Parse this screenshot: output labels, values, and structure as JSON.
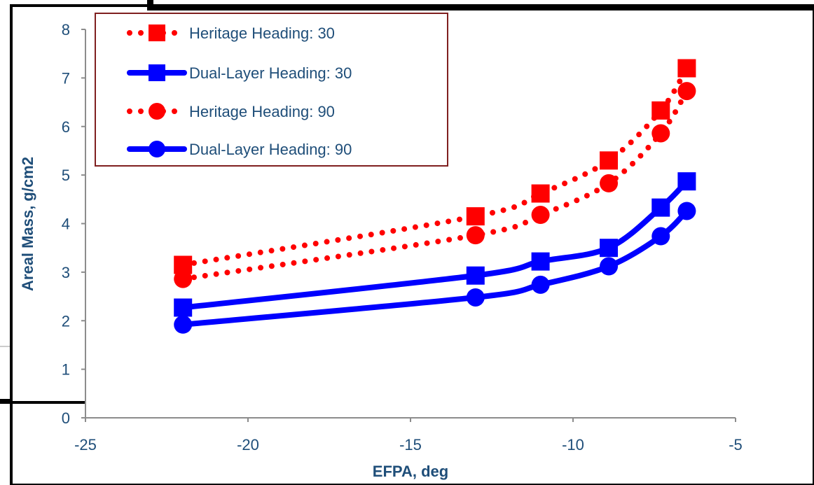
{
  "chart_data": {
    "type": "line",
    "title": "",
    "xlabel": "EFPA, deg",
    "ylabel": "Areal Mass, g/cm2",
    "xlim": [
      -25,
      -5
    ],
    "ylim": [
      0,
      8
    ],
    "x_ticks": [
      -25,
      -20,
      -15,
      -10,
      -5
    ],
    "y_ticks": [
      0,
      1,
      2,
      3,
      4,
      5,
      6,
      7,
      8
    ],
    "grid": false,
    "legend_position": "top-left",
    "series": [
      {
        "name": "Heritage Heading: 30",
        "color": "#ff0000",
        "line": "dotted",
        "marker": "square",
        "x": [
          -22,
          -13,
          -11,
          -8.9,
          -7.3,
          -6.5
        ],
        "y": [
          3.15,
          4.15,
          4.62,
          5.3,
          6.33,
          7.2
        ]
      },
      {
        "name": "Dual-Layer Heading: 30",
        "color": "#0000ff",
        "line": "solid",
        "marker": "square",
        "x": [
          -22,
          -13,
          -11,
          -8.9,
          -7.3,
          -6.5
        ],
        "y": [
          2.27,
          2.93,
          3.22,
          3.5,
          4.33,
          4.87
        ]
      },
      {
        "name": "Heritage Heading: 90",
        "color": "#ff0000",
        "line": "dotted",
        "marker": "circle",
        "x": [
          -22,
          -13,
          -11,
          -8.9,
          -7.3,
          -6.5
        ],
        "y": [
          2.86,
          3.76,
          4.18,
          4.83,
          5.86,
          6.73
        ]
      },
      {
        "name": "Dual-Layer Heading: 90",
        "color": "#0000ff",
        "line": "solid",
        "marker": "circle",
        "x": [
          -22,
          -13,
          -11,
          -8.9,
          -7.3,
          -6.5
        ],
        "y": [
          1.92,
          2.48,
          2.74,
          3.12,
          3.74,
          4.26
        ]
      }
    ]
  }
}
